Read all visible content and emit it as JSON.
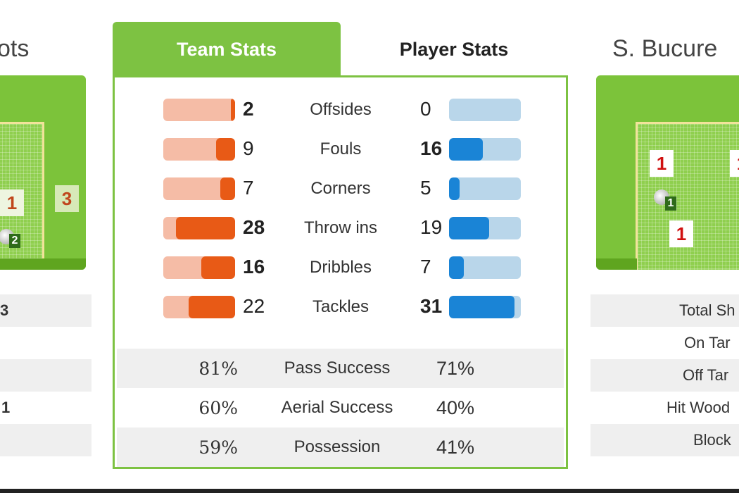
{
  "home": {
    "title_partial": "ots",
    "pitch_zones": [
      "1",
      "3"
    ],
    "goals": "2",
    "stats_values": [
      "3",
      "",
      "",
      "1",
      ""
    ]
  },
  "away": {
    "title_partial": "S. Bucure",
    "pitch_zones": [
      "1",
      "1",
      "1"
    ],
    "goals": "1",
    "stats_labels": [
      "Total Sh",
      "On Tar",
      "Off Tar",
      "Hit Wood",
      "Block"
    ]
  },
  "tabs": {
    "team_stats": "Team Stats",
    "player_stats": "Player Stats",
    "active": "team_stats"
  },
  "colors": {
    "accent": "#7dc242",
    "home": "#e85a16",
    "away": "#1a84d6"
  },
  "bar_stats": [
    {
      "label": "Offsides",
      "home": 2,
      "away": 0
    },
    {
      "label": "Fouls",
      "home": 9,
      "away": 16
    },
    {
      "label": "Corners",
      "home": 7,
      "away": 5
    },
    {
      "label": "Throw ins",
      "home": 28,
      "away": 19
    },
    {
      "label": "Dribbles",
      "home": 16,
      "away": 7
    },
    {
      "label": "Tackles",
      "home": 22,
      "away": 31
    }
  ],
  "pct_stats": [
    {
      "label": "Pass Success",
      "home": "81%",
      "away": "71%"
    },
    {
      "label": "Aerial Success",
      "home": "60%",
      "away": "40%"
    },
    {
      "label": "Possession",
      "home": "59%",
      "away": "41%"
    }
  ]
}
